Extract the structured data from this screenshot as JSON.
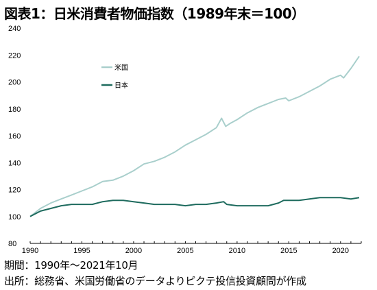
{
  "title": "図表1：日米消費者物価指数（1989年末＝100）",
  "footer": {
    "period": "期間：1990年～2021年10月",
    "source": "出所：総務省、米国労働省のデータよりピクテ投信投資顧問が作成"
  },
  "chart_data": {
    "type": "line",
    "xlim": [
      1990,
      2022
    ],
    "ylim": [
      80,
      240
    ],
    "x_ticks": [
      1990,
      1995,
      2000,
      2005,
      2010,
      2015,
      2020
    ],
    "y_ticks": [
      80,
      100,
      120,
      140,
      160,
      180,
      200,
      220,
      240
    ],
    "grid": false,
    "legend_position": "upper-left inside plot",
    "series": [
      {
        "name": "米国",
        "color": "#a9cfcc",
        "x": [
          1990,
          1991,
          1992,
          1993,
          1994,
          1995,
          1996,
          1997,
          1998,
          1999,
          2000,
          2001,
          2002,
          2003,
          2004,
          2005,
          2006,
          2007,
          2008,
          2008.5,
          2008.9,
          2009.3,
          2010,
          2011,
          2012,
          2013,
          2014,
          2014.7,
          2015,
          2016,
          2017,
          2018,
          2019,
          2020,
          2020.3,
          2021,
          2021.8
        ],
        "y": [
          100,
          106,
          110,
          113,
          116,
          119,
          122,
          126,
          127,
          130,
          134,
          139,
          141,
          144,
          148,
          153,
          157,
          161,
          166,
          173,
          167,
          169,
          172,
          177,
          181,
          184,
          187,
          188,
          186,
          189,
          193,
          197,
          202,
          205,
          203,
          210,
          219
        ]
      },
      {
        "name": "日本",
        "color": "#1e6b5e",
        "x": [
          1990,
          1991,
          1992,
          1993,
          1994,
          1995,
          1996,
          1997,
          1998,
          1999,
          2000,
          2001,
          2002,
          2003,
          2004,
          2005,
          2006,
          2007,
          2008,
          2008.7,
          2009,
          2010,
          2011,
          2012,
          2013,
          2014,
          2014.5,
          2015,
          2016,
          2017,
          2018,
          2019,
          2020,
          2021,
          2021.8
        ],
        "y": [
          100,
          104,
          106,
          108,
          109,
          109,
          109,
          111,
          112,
          112,
          111,
          110,
          109,
          109,
          109,
          108,
          109,
          109,
          110,
          111,
          109,
          108,
          108,
          108,
          108,
          110,
          112,
          112,
          112,
          113,
          114,
          114,
          114,
          113,
          114
        ]
      }
    ]
  }
}
